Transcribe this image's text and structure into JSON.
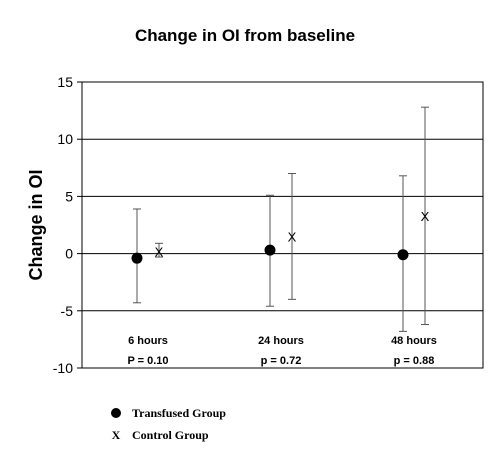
{
  "chart_data": {
    "type": "scatter",
    "title": "Change in OI from baseline",
    "ylabel": "Change in OI",
    "xlabel": "",
    "ylim": [
      -10,
      15
    ],
    "yticks": [
      -10,
      -5,
      0,
      5,
      10,
      15
    ],
    "grid": "horizontal",
    "categories": [
      "6 hours",
      "24 hours",
      "48 hours"
    ],
    "p_values": [
      "P = 0.10",
      "p = 0.72",
      "p = 0.88"
    ],
    "series": [
      {
        "name": "Transfused Group",
        "marker": "filled-circle",
        "color": "#000000",
        "points": [
          {
            "category": "6 hours",
            "mean": -0.4,
            "lower": -4.3,
            "upper": 3.9
          },
          {
            "category": "24 hours",
            "mean": 0.3,
            "lower": -4.6,
            "upper": 5.1
          },
          {
            "category": "48 hours",
            "mean": -0.1,
            "lower": -6.8,
            "upper": 6.8
          }
        ]
      },
      {
        "name": "Control Group",
        "marker": "X",
        "color": "#000000",
        "points": [
          {
            "category": "6 hours",
            "mean": 0.2,
            "lower": -0.3,
            "upper": 0.9
          },
          {
            "category": "24 hours",
            "mean": 1.5,
            "lower": -4.0,
            "upper": 7.0
          },
          {
            "category": "48 hours",
            "mean": 3.3,
            "lower": -6.2,
            "upper": 12.8
          }
        ]
      }
    ],
    "legend": {
      "placement": "bottom-left",
      "entries": [
        {
          "symbol": "●",
          "label": "Transfused Group"
        },
        {
          "symbol": "X",
          "label": "Control Group"
        }
      ]
    }
  }
}
